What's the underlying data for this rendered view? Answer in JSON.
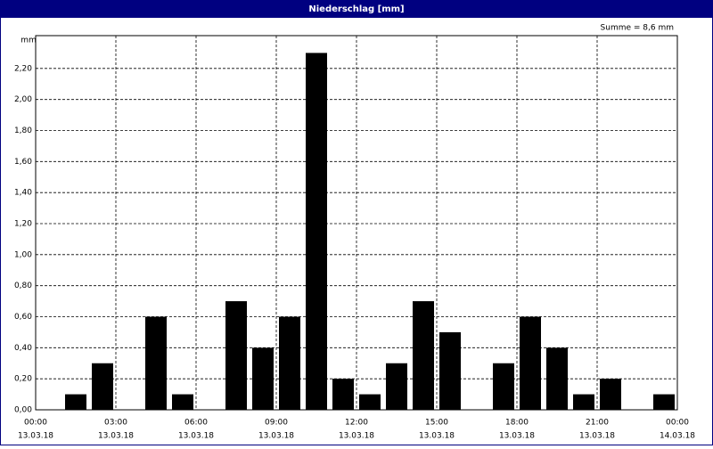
{
  "chart_data": {
    "type": "bar",
    "title": "Niederschlag [mm]",
    "y_label": "mm",
    "annotation": "Summe = 8,6 mm",
    "x": [
      1,
      2,
      4,
      5,
      7,
      8,
      9,
      10,
      11,
      12,
      13,
      14,
      15,
      17,
      18,
      19,
      20,
      21,
      23
    ],
    "values": [
      0.1,
      0.3,
      0.6,
      0.1,
      0.7,
      0.4,
      0.6,
      2.3,
      0.2,
      0.1,
      0.3,
      0.7,
      0.5,
      0.3,
      0.6,
      0.4,
      0.1,
      0.2,
      0.1
    ],
    "color": "#000000",
    "xlim": [
      0,
      24
    ],
    "ylim": [
      0,
      2.4
    ],
    "xticks": [
      {
        "value": 0,
        "label": "00:00",
        "date": "13.03.18"
      },
      {
        "value": 3,
        "label": "03:00",
        "date": "13.03.18"
      },
      {
        "value": 6,
        "label": "06:00",
        "date": "13.03.18"
      },
      {
        "value": 9,
        "label": "09:00",
        "date": "13.03.18"
      },
      {
        "value": 12,
        "label": "12:00",
        "date": "13.03.18"
      },
      {
        "value": 15,
        "label": "15:00",
        "date": "13.03.18"
      },
      {
        "value": 18,
        "label": "18:00",
        "date": "13.03.18"
      },
      {
        "value": 21,
        "label": "21:00",
        "date": "13.03.18"
      },
      {
        "value": 24,
        "label": "00:00",
        "date": "14.03.18"
      }
    ],
    "yticks": [
      {
        "value": 0,
        "label": "0,00"
      },
      {
        "value": 0.2,
        "label": "0,20"
      },
      {
        "value": 0.4,
        "label": "0,40"
      },
      {
        "value": 0.6,
        "label": "0,60"
      },
      {
        "value": 0.8,
        "label": "0,80"
      },
      {
        "value": 1,
        "label": "1,00"
      },
      {
        "value": 1.2,
        "label": "1,20"
      },
      {
        "value": 1.4,
        "label": "1,40"
      },
      {
        "value": 1.6,
        "label": "1,60"
      },
      {
        "value": 1.8,
        "label": "1,80"
      },
      {
        "value": 2,
        "label": "2,00"
      },
      {
        "value": 2.2,
        "label": "2,20"
      }
    ],
    "grid": true
  }
}
